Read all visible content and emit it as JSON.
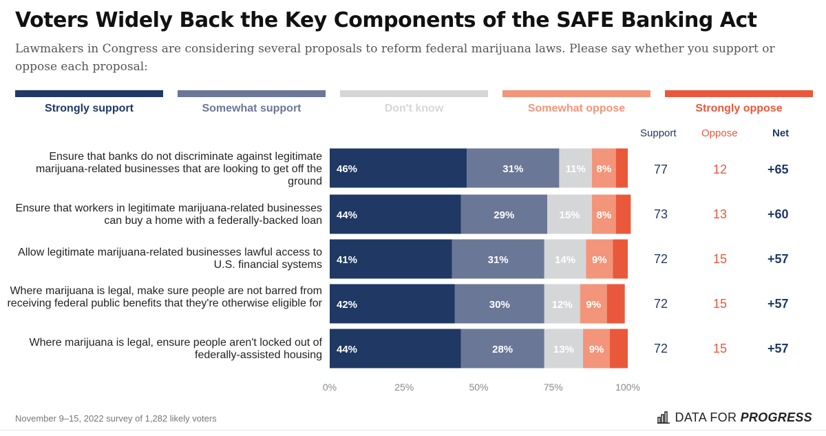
{
  "title": "Voters Widely Back the Key Components of the SAFE Banking Act",
  "subtitle": "Lawmakers in Congress are considering several proposals to reform federal marijuana laws. Please say whether you support or oppose each proposal:",
  "legend": [
    {
      "label": "Strongly support",
      "color": "#1f3864"
    },
    {
      "label": "Somewhat support",
      "color": "#6b7797"
    },
    {
      "label": "Don't know",
      "color": "#d5d6d8"
    },
    {
      "label": "Somewhat oppose",
      "color": "#f2957a"
    },
    {
      "label": "Strongly oppose",
      "color": "#e9583b"
    }
  ],
  "columns": {
    "support": "Support",
    "oppose": "Oppose",
    "net": "Net"
  },
  "rows": [
    {
      "label": "Ensure that banks do not discriminate against legitimate marijuana-related businesses that are looking to get off the ground",
      "support": "77",
      "oppose": "12",
      "net": "+65"
    },
    {
      "label": "Ensure that workers in legitimate marijuana-related businesses can buy a home with a federally-backed loan",
      "support": "73",
      "oppose": "13",
      "net": "+60"
    },
    {
      "label": "Allow legitimate marijuana-related businesses lawful access to U.S. financial systems",
      "support": "72",
      "oppose": "15",
      "net": "+57"
    },
    {
      "label": "Where marijuana is legal, make sure people are not barred from receiving federal public benefits that they're otherwise eligible for",
      "support": "72",
      "oppose": "15",
      "net": "+57"
    },
    {
      "label": "Where marijuana is legal, ensure people aren't locked out of federally-assisted housing",
      "support": "72",
      "oppose": "15",
      "net": "+57"
    }
  ],
  "chart_data": {
    "type": "bar",
    "orientation": "horizontal",
    "stacked": true,
    "categories": [
      "Ensure that banks do not discriminate against legitimate marijuana-related businesses that are looking to get off the ground",
      "Ensure that workers in legitimate marijuana-related businesses can buy a home with a federally-backed loan",
      "Allow legitimate marijuana-related businesses lawful access to U.S. financial systems",
      "Where marijuana is legal, make sure people are not barred from receiving federal public benefits that they're otherwise eligible for",
      "Where marijuana is legal, ensure people aren't locked out of federally-assisted housing"
    ],
    "series": [
      {
        "name": "Strongly support",
        "values": [
          46,
          44,
          41,
          42,
          44
        ],
        "labels": [
          "46%",
          "44%",
          "41%",
          "42%",
          "44%"
        ]
      },
      {
        "name": "Somewhat support",
        "values": [
          31,
          29,
          31,
          30,
          28
        ],
        "labels": [
          "31%",
          "29%",
          "31%",
          "30%",
          "28%"
        ]
      },
      {
        "name": "Don't know",
        "values": [
          11,
          15,
          14,
          12,
          13
        ],
        "labels": [
          "11%",
          "15%",
          "14%",
          "12%",
          "13%"
        ]
      },
      {
        "name": "Somewhat oppose",
        "values": [
          8,
          8,
          9,
          9,
          9
        ],
        "labels": [
          "8%",
          "8%",
          "9%",
          "9%",
          "9%"
        ]
      },
      {
        "name": "Strongly oppose",
        "values": [
          4,
          5,
          5,
          6,
          6
        ],
        "labels": [
          "",
          "",
          "",
          "",
          ""
        ]
      }
    ],
    "label_colors": [
      "#ffffff",
      "#ffffff",
      "#ffffff",
      "#ffffff",
      "#ffffff"
    ],
    "xlim": [
      0,
      100
    ],
    "xticks": [
      "0%",
      "25%",
      "50%",
      "75%",
      "100%"
    ],
    "tick_color": "#888888",
    "grid": false,
    "legend_position": "top"
  },
  "colors": {
    "support_text": "#1f3864",
    "oppose_text": "#e9583b",
    "net_text": "#1f3864"
  },
  "footnote": "November 9–15, 2022 survey of 1,282 likely voters",
  "logo": {
    "icon": "bar-chart-icon",
    "text_regular": "DATA FOR ",
    "text_bold": "PROGRESS"
  }
}
